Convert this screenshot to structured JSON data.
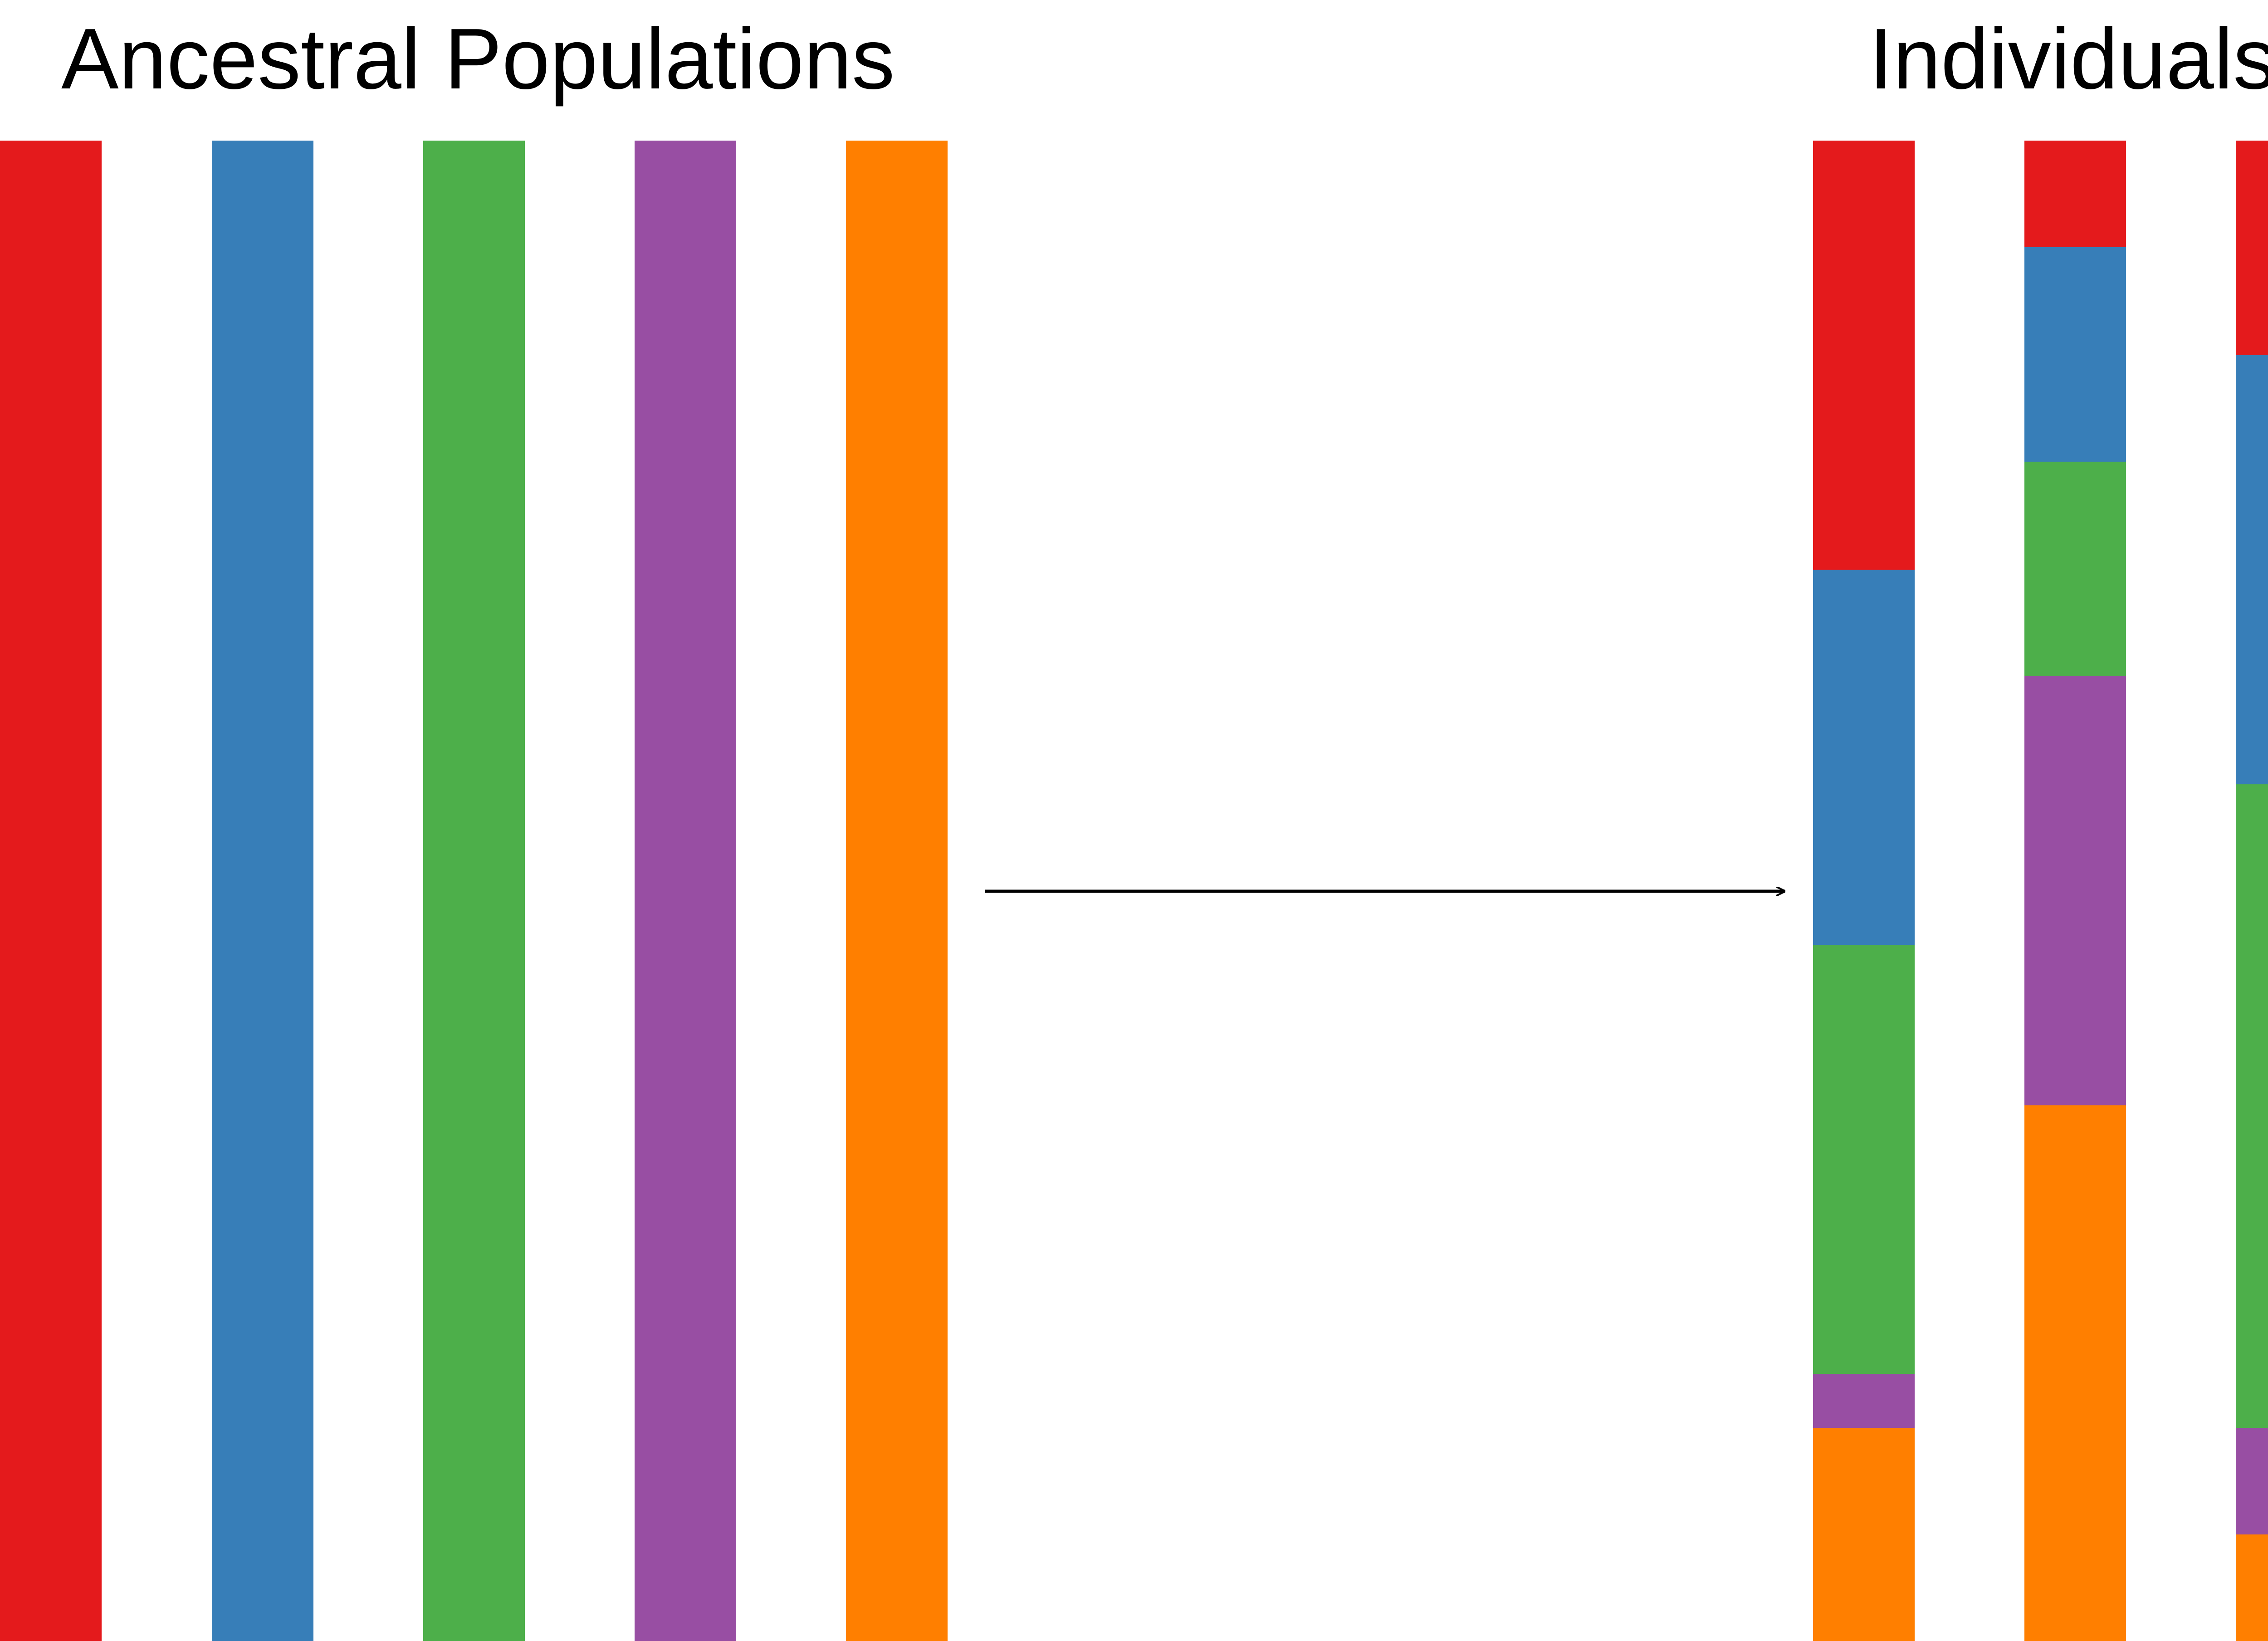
{
  "headings": {
    "left": "Ancestral Populations",
    "right": "Individuals"
  },
  "colors": {
    "red": "#e41a1c",
    "blue": "#377eb8",
    "green": "#4daf4a",
    "purple": "#984ea3",
    "orange": "#ff7f00"
  },
  "ancestral_populations": [
    "red",
    "blue",
    "green",
    "purple",
    "orange"
  ],
  "individuals": [
    {
      "proportions": {
        "red": 0.286,
        "blue": 0.25,
        "green": 0.286,
        "purple": 0.036,
        "orange": 0.142
      }
    },
    {
      "proportions": {
        "red": 0.071,
        "blue": 0.143,
        "green": 0.143,
        "purple": 0.286,
        "orange": 0.357
      }
    },
    {
      "proportions": {
        "red": 0.143,
        "blue": 0.286,
        "green": 0.429,
        "purple": 0.071,
        "orange": 0.071
      }
    }
  ]
}
